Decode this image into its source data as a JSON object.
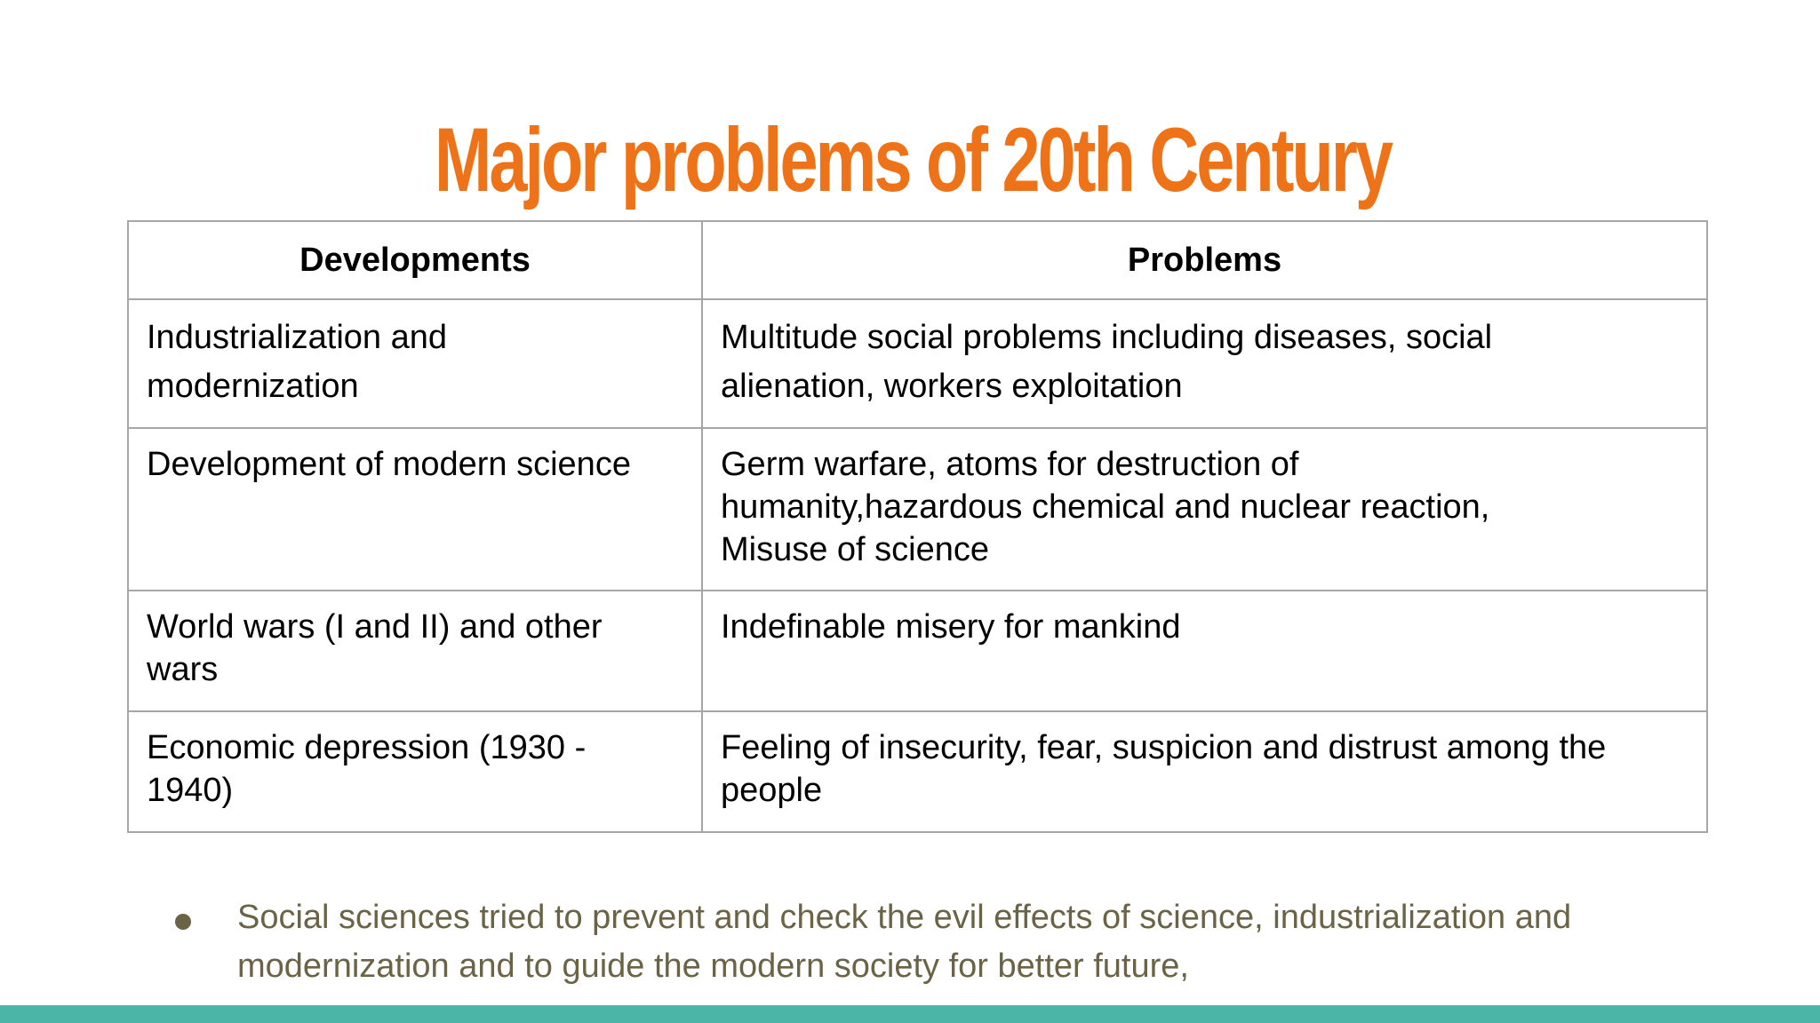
{
  "slide": {
    "title": "Major problems of 20th Century",
    "accent_color": "#ee7318",
    "bottom_bar_color": "#4bb6a8"
  },
  "table": {
    "headers": [
      "Developments",
      "Problems"
    ],
    "rows": [
      {
        "development_lines": [
          "Industrialization and",
          "modernization"
        ],
        "problem_lines": [
          "Multitude social problems including diseases, social",
          "alienation, workers exploitation"
        ]
      },
      {
        "development_lines": [
          "Development of modern science"
        ],
        "problem_lines": [
          "Germ warfare, atoms for destruction of",
          "humanity,hazardous chemical and nuclear reaction,",
          "Misuse of science"
        ]
      },
      {
        "development_lines": [
          "World wars (I and II) and other",
          "wars"
        ],
        "problem_lines": [
          "Indefinable misery for mankind"
        ]
      },
      {
        "development_lines": [
          "Economic depression (1930 -",
          "1940)"
        ],
        "problem_lines": [
          "Feeling of insecurity, fear, suspicion and distrust among the",
          "people"
        ]
      }
    ]
  },
  "bullets": [
    {
      "icon": "bullet-dot-icon",
      "lines": [
        "Social sciences tried to prevent and check the evil effects of science, industrialization and",
        "modernization and to guide the modern society for better future,"
      ]
    }
  ]
}
